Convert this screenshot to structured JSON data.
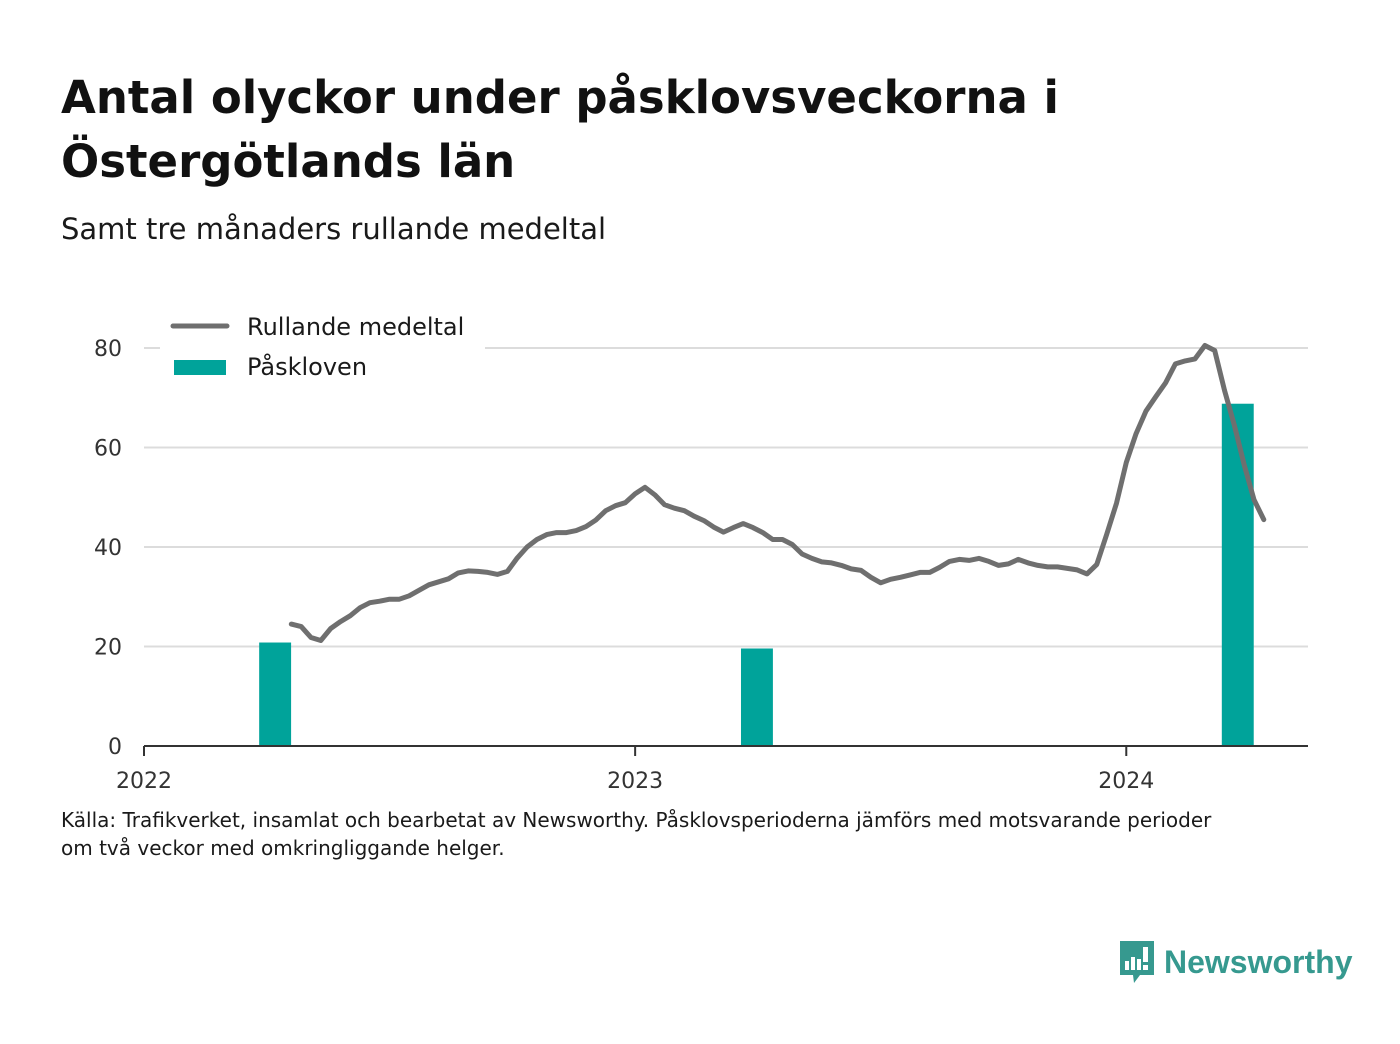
{
  "title": "Antal olyckor under påsklovsveckorna i Östergötlands län",
  "subtitle": "Samt tre månaders rullande medeltal",
  "source": {
    "line1": "Källa: Trafikverket, insamlat och bearbetat av Newsworthy. Påsklovsperioderna jämförs med motsvarande perioder",
    "line2": "om två veckor med omkringliggande helger."
  },
  "brand": {
    "name": "Newsworthy",
    "icon": "newsworthy-logo-icon"
  },
  "colors": {
    "line": "#6f6f6f",
    "bar": "#00a39a",
    "grid": "#dcdcdc",
    "axis": "#333333",
    "brand": "#36998f"
  },
  "chart_data": {
    "type": "bar",
    "xlim": [
      2022.0,
      2024.37
    ],
    "ylim": [
      0,
      80
    ],
    "yticks": [
      0,
      20,
      40,
      60,
      80
    ],
    "xticks": [
      {
        "value": 2022,
        "label": "2022"
      },
      {
        "value": 2023,
        "label": "2023"
      },
      {
        "value": 2024,
        "label": "2024"
      }
    ],
    "grid": true,
    "legend_position": "top-left",
    "series": [
      {
        "name": "Rullande medeltal",
        "type": "line",
        "points": [
          [
            2022.3,
            24.5
          ],
          [
            2022.32,
            24.0
          ],
          [
            2022.34,
            21.8
          ],
          [
            2022.36,
            21.2
          ],
          [
            2022.38,
            23.6
          ],
          [
            2022.4,
            25.0
          ],
          [
            2022.42,
            26.2
          ],
          [
            2022.44,
            27.8
          ],
          [
            2022.46,
            28.8
          ],
          [
            2022.48,
            29.1
          ],
          [
            2022.5,
            29.5
          ],
          [
            2022.52,
            29.5
          ],
          [
            2022.54,
            30.2
          ],
          [
            2022.56,
            31.3
          ],
          [
            2022.58,
            32.4
          ],
          [
            2022.6,
            33.0
          ],
          [
            2022.62,
            33.6
          ],
          [
            2022.64,
            34.8
          ],
          [
            2022.66,
            35.2
          ],
          [
            2022.68,
            35.1
          ],
          [
            2022.7,
            34.9
          ],
          [
            2022.72,
            34.5
          ],
          [
            2022.74,
            35.1
          ],
          [
            2022.76,
            37.8
          ],
          [
            2022.78,
            40.0
          ],
          [
            2022.8,
            41.5
          ],
          [
            2022.82,
            42.5
          ],
          [
            2022.84,
            42.9
          ],
          [
            2022.86,
            42.9
          ],
          [
            2022.88,
            43.3
          ],
          [
            2022.9,
            44.1
          ],
          [
            2022.92,
            45.4
          ],
          [
            2022.94,
            47.3
          ],
          [
            2022.96,
            48.3
          ],
          [
            2022.98,
            48.9
          ],
          [
            2023.0,
            50.7
          ],
          [
            2023.02,
            52.0
          ],
          [
            2023.04,
            50.5
          ],
          [
            2023.06,
            48.5
          ],
          [
            2023.08,
            47.8
          ],
          [
            2023.1,
            47.3
          ],
          [
            2023.12,
            46.2
          ],
          [
            2023.14,
            45.3
          ],
          [
            2023.16,
            44.0
          ],
          [
            2023.18,
            43.0
          ],
          [
            2023.2,
            43.9
          ],
          [
            2023.22,
            44.7
          ],
          [
            2023.24,
            43.9
          ],
          [
            2023.26,
            42.9
          ],
          [
            2023.28,
            41.5
          ],
          [
            2023.3,
            41.5
          ],
          [
            2023.32,
            40.5
          ],
          [
            2023.34,
            38.6
          ],
          [
            2023.36,
            37.7
          ],
          [
            2023.38,
            37.0
          ],
          [
            2023.4,
            36.8
          ],
          [
            2023.42,
            36.3
          ],
          [
            2023.44,
            35.6
          ],
          [
            2023.46,
            35.3
          ],
          [
            2023.48,
            33.9
          ],
          [
            2023.5,
            32.8
          ],
          [
            2023.52,
            33.5
          ],
          [
            2023.54,
            33.9
          ],
          [
            2023.56,
            34.4
          ],
          [
            2023.58,
            34.9
          ],
          [
            2023.6,
            34.9
          ],
          [
            2023.62,
            35.9
          ],
          [
            2023.64,
            37.1
          ],
          [
            2023.66,
            37.5
          ],
          [
            2023.68,
            37.3
          ],
          [
            2023.7,
            37.7
          ],
          [
            2023.72,
            37.1
          ],
          [
            2023.74,
            36.3
          ],
          [
            2023.76,
            36.6
          ],
          [
            2023.78,
            37.5
          ],
          [
            2023.8,
            36.8
          ],
          [
            2023.82,
            36.3
          ],
          [
            2023.84,
            36.0
          ],
          [
            2023.86,
            36.0
          ],
          [
            2023.88,
            35.7
          ],
          [
            2023.9,
            35.4
          ],
          [
            2023.92,
            34.6
          ],
          [
            2023.94,
            36.5
          ],
          [
            2023.96,
            42.5
          ],
          [
            2023.98,
            48.8
          ],
          [
            2024.0,
            57.0
          ],
          [
            2024.02,
            62.8
          ],
          [
            2024.04,
            67.3
          ],
          [
            2024.06,
            70.2
          ],
          [
            2024.08,
            73.0
          ],
          [
            2024.1,
            76.8
          ],
          [
            2024.12,
            77.4
          ],
          [
            2024.14,
            77.8
          ],
          [
            2024.16,
            80.5
          ],
          [
            2024.18,
            79.5
          ],
          [
            2024.2,
            71.5
          ],
          [
            2024.22,
            64.5
          ],
          [
            2024.24,
            56.5
          ],
          [
            2024.26,
            49.5
          ],
          [
            2024.28,
            45.5
          ]
        ]
      },
      {
        "name": "Påskloven",
        "type": "bar",
        "width": 0.065,
        "points": [
          [
            2022.267,
            20.8
          ],
          [
            2023.248,
            19.6
          ],
          [
            2024.227,
            68.8
          ]
        ]
      }
    ]
  }
}
